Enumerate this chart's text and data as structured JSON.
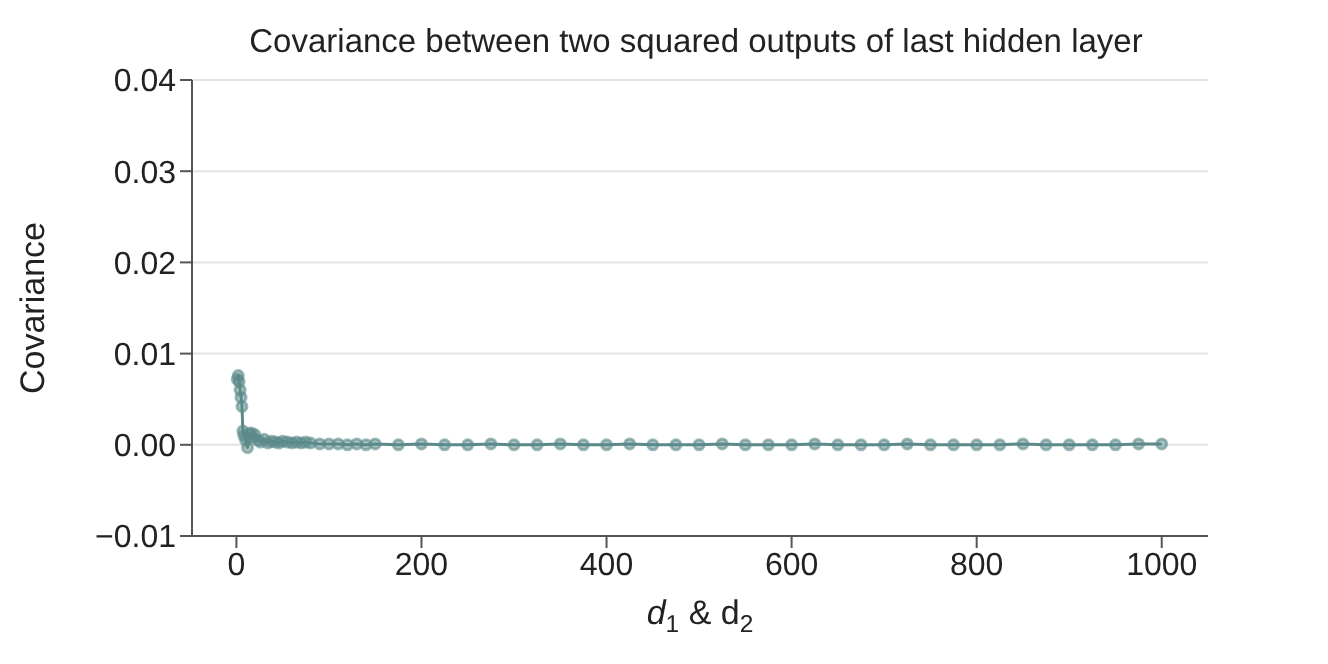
{
  "chart_data": {
    "type": "line",
    "title": "Covariance between two squared outputs of last hidden layer",
    "xlabel": "d$_{1}$ & d$_{2}$",
    "ylabel": "Covariance",
    "x": [
      1,
      2,
      3,
      4,
      5,
      6,
      7,
      8,
      10,
      12,
      14,
      16,
      18,
      20,
      23,
      26,
      30,
      34,
      38,
      42,
      46,
      50,
      55,
      60,
      65,
      70,
      75,
      80,
      90,
      100,
      110,
      120,
      130,
      140,
      150,
      175,
      200,
      225,
      250,
      275,
      300,
      325,
      350,
      375,
      400,
      425,
      450,
      475,
      500,
      525,
      550,
      575,
      600,
      625,
      650,
      675,
      700,
      725,
      750,
      775,
      800,
      825,
      850,
      875,
      900,
      925,
      950,
      975,
      1000
    ],
    "series": [
      {
        "color": "#5b8a8a",
        "values": [
          0.0072,
          0.0076,
          0.0069,
          0.006,
          0.0052,
          0.0042,
          0.0015,
          0.001,
          0.0005,
          -0.0003,
          0.0012,
          0.0013,
          0.0008,
          0.0011,
          0.0005,
          0.0003,
          0.0006,
          0.0002,
          0.0004,
          0.0003,
          0.0002,
          0.0004,
          0.0003,
          0.0002,
          0.0003,
          0.0002,
          0.0003,
          0.0002,
          0.0001,
          0.0001,
          0.0001,
          0.0,
          0.0001,
          0.0,
          0.0001,
          0.0,
          0.0001,
          0.0,
          0.0,
          0.0001,
          0.0,
          0.0,
          0.0001,
          0.0,
          0.0,
          0.0001,
          0.0,
          0.0,
          0.0,
          0.0001,
          0.0,
          0.0,
          0.0,
          0.0001,
          0.0,
          0.0,
          0.0,
          0.0001,
          0.0,
          0.0,
          0.0,
          0.0,
          0.0001,
          0.0,
          0.0,
          0.0,
          0.0,
          0.0001,
          0.0001
        ]
      }
    ],
    "xlim": [
      -48,
      1050
    ],
    "xticks": [
      0,
      200,
      400,
      600,
      800,
      1000
    ],
    "ylim": [
      -0.01,
      0.04
    ],
    "yticks": [
      {
        "value": -0.01,
        "label": "−0.01"
      },
      {
        "value": 0,
        "label": "0.00"
      },
      {
        "value": 0.01,
        "label": "0.01"
      },
      {
        "value": 0.02,
        "label": "0.02"
      },
      {
        "value": 0.03,
        "label": "0.03"
      },
      {
        "value": 0.04,
        "label": "0.04"
      }
    ],
    "grid": "y",
    "marker": "circle",
    "line_style": "solid"
  }
}
